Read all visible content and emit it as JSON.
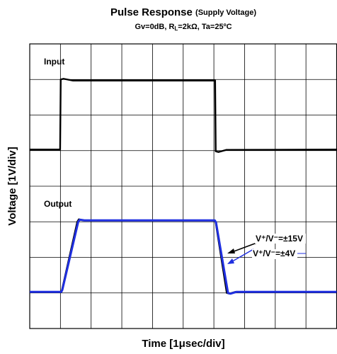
{
  "chart_data": {
    "type": "line",
    "title": "Pulse Response",
    "title_note": "(Supply Voltage)",
    "subtitle_parts": [
      "Gv=0dB, R",
      "L",
      "=2kΩ, Ta=25ºC"
    ],
    "x_label": "Time [1μsec/div]",
    "y_label": "Voltage [1V/div]",
    "output_label": "Output",
    "xlim": [
      0,
      10
    ],
    "ylim": [
      0,
      8
    ],
    "xticks": [
      0,
      1,
      2,
      3,
      4,
      5,
      6,
      7,
      8,
      9,
      10
    ],
    "yticks": [
      0,
      1,
      2,
      3,
      4,
      5,
      6,
      7,
      8
    ],
    "grid": true,
    "series": [
      {
        "name": "Input",
        "color": "#000000",
        "x": [
          0,
          0.99,
          1.01,
          1.1,
          1.4,
          6.04,
          6.06,
          6.15,
          6.4,
          10
        ],
        "values": [
          5.03,
          5.03,
          7.0,
          7.02,
          6.97,
          6.97,
          4.98,
          4.96,
          5.02,
          5.03
        ]
      },
      {
        "name": "V⁺/V⁻=±15V",
        "color": "#000000",
        "x": [
          0,
          1.02,
          1.05,
          1.55,
          1.6,
          1.75,
          6.03,
          6.06,
          6.42,
          6.5,
          6.7,
          10
        ],
        "values": [
          1.03,
          1.03,
          1.08,
          3.0,
          3.07,
          3.04,
          3.04,
          2.98,
          1.0,
          0.98,
          1.03,
          1.03
        ]
      },
      {
        "name": "V⁺/V⁻=±4V",
        "color": "#1f2fe0",
        "x": [
          0,
          1.03,
          1.06,
          1.58,
          1.63,
          1.78,
          6.03,
          6.07,
          6.46,
          6.54,
          6.74,
          10
        ],
        "values": [
          1.03,
          1.03,
          1.08,
          3.0,
          3.06,
          3.04,
          3.04,
          2.98,
          1.0,
          0.98,
          1.03,
          1.03
        ]
      }
    ]
  }
}
